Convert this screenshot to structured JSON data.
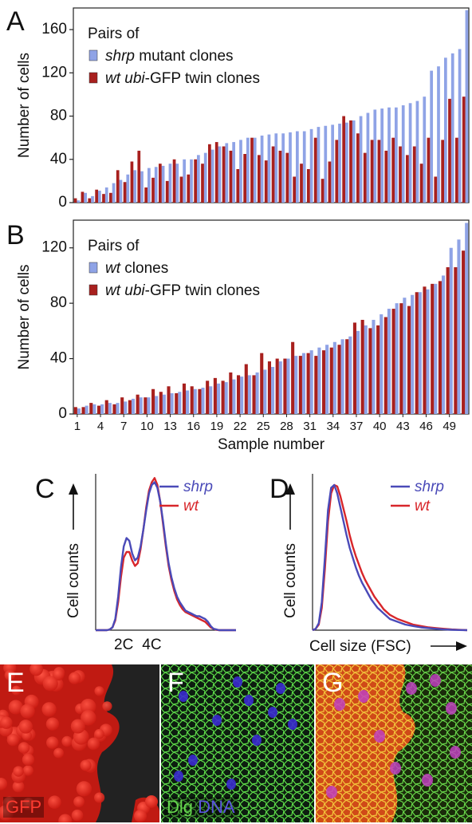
{
  "panels": {
    "a": {
      "letter": "A"
    },
    "b": {
      "letter": "B"
    },
    "c": {
      "letter": "C"
    },
    "d": {
      "letter": "D"
    },
    "e": {
      "letter": "E",
      "label": "GFP"
    },
    "f": {
      "letter": "F",
      "label_dlg": "Dlg",
      "label_dna": "DNA"
    },
    "g": {
      "letter": "G"
    }
  },
  "colors": {
    "blue": "#8fa3e6",
    "red": "#a8201e",
    "line_blue": "#4a4ab8",
    "line_red": "#d8262a"
  },
  "chart_data": [
    {
      "id": "A",
      "type": "bar",
      "ylabel": "Number of cells",
      "ylim": [
        0,
        180
      ],
      "yticks": [
        0,
        40,
        80,
        120,
        160
      ],
      "legend_title": "Pairs of",
      "legend_placement": "top-left",
      "series": [
        {
          "name_italic": "shrp",
          "name_rest": " mutant clones",
          "color": "#8fa3e6",
          "values": [
            2,
            9,
            6,
            11,
            14,
            18,
            21,
            26,
            30,
            29,
            32,
            33,
            34,
            36,
            36,
            40,
            40,
            44,
            46,
            49,
            52,
            55,
            56,
            58,
            60,
            60,
            62,
            63,
            64,
            64,
            65,
            66,
            66,
            68,
            70,
            71,
            72,
            73,
            74,
            76,
            80,
            83,
            86,
            87,
            88,
            88,
            90,
            92,
            94,
            98,
            122,
            126,
            134,
            138,
            142,
            178
          ]
        },
        {
          "name_italic": "wt ubi",
          "name_rest": "-GFP twin clones",
          "color": "#a8201e",
          "values": [
            4,
            10,
            4,
            12,
            8,
            9,
            30,
            19,
            38,
            48,
            14,
            23,
            36,
            20,
            40,
            24,
            26,
            40,
            36,
            54,
            56,
            52,
            48,
            31,
            45,
            60,
            44,
            39,
            52,
            48,
            46,
            24,
            36,
            31,
            60,
            22,
            38,
            58,
            80,
            76,
            64,
            46,
            58,
            58,
            48,
            60,
            52,
            44,
            52,
            36,
            60,
            24,
            58,
            96,
            60,
            98
          ]
        }
      ]
    },
    {
      "id": "B",
      "type": "bar",
      "xlabel": "Sample number",
      "ylabel": "Number of cells",
      "ylim": [
        0,
        140
      ],
      "yticks": [
        0,
        40,
        80,
        120
      ],
      "xticks": [
        "1",
        "4",
        "7",
        "10",
        "13",
        "16",
        "19",
        "22",
        "25",
        "28",
        "31",
        "34",
        "37",
        "40",
        "43",
        "46",
        "49"
      ],
      "legend_title": "Pairs of",
      "legend_placement": "top-left",
      "series": [
        {
          "name_italic": "wt",
          "name_rest": " clones",
          "color": "#8fa3e6",
          "values": [
            4,
            6,
            7,
            7,
            8,
            8,
            9,
            11,
            12,
            12,
            13,
            14,
            15,
            16,
            17,
            18,
            19,
            20,
            22,
            23,
            25,
            27,
            28,
            30,
            32,
            34,
            38,
            40,
            42,
            44,
            46,
            48,
            50,
            52,
            54,
            56,
            60,
            64,
            68,
            72,
            76,
            80,
            84,
            86,
            88,
            90,
            94,
            100,
            120,
            126,
            138
          ]
        },
        {
          "name_italic": "wt ubi",
          "name_rest": "-GFP twin clones",
          "color": "#a8201e",
          "values": [
            5,
            5,
            8,
            6,
            10,
            7,
            12,
            10,
            14,
            12,
            18,
            16,
            20,
            15,
            22,
            20,
            18,
            24,
            26,
            24,
            30,
            28,
            36,
            28,
            44,
            38,
            40,
            40,
            52,
            42,
            44,
            42,
            46,
            48,
            50,
            54,
            66,
            68,
            62,
            64,
            70,
            76,
            80,
            78,
            88,
            92,
            94,
            96,
            106,
            106,
            118
          ]
        }
      ]
    },
    {
      "id": "C",
      "type": "line",
      "ylabel": "Cell counts",
      "xticks": [
        "2C",
        "4C"
      ],
      "legend_placement": "top-right",
      "series": [
        {
          "name": "shrp",
          "color": "#4a4ab8",
          "x": [
            0,
            8,
            10,
            12,
            14,
            16,
            18,
            20,
            22,
            24,
            26,
            28,
            30,
            32,
            34,
            36,
            38,
            40,
            42,
            44,
            46,
            48,
            50,
            52,
            54,
            56,
            58,
            60,
            62,
            64,
            66,
            68,
            70,
            72,
            74,
            76,
            78,
            80,
            82,
            84,
            86,
            88,
            90,
            100
          ],
          "y": [
            0,
            0,
            0.5,
            2,
            8,
            24,
            45,
            60,
            66,
            64,
            55,
            50,
            52,
            60,
            72,
            86,
            98,
            104,
            106,
            102,
            92,
            78,
            62,
            48,
            38,
            30,
            24,
            20,
            17,
            14,
            13,
            12,
            11,
            10,
            10,
            9,
            8,
            6,
            3,
            1,
            0.5,
            0,
            0,
            0
          ]
        },
        {
          "name": "wt",
          "color": "#d8262a",
          "x": [
            0,
            8,
            10,
            12,
            14,
            16,
            18,
            20,
            22,
            24,
            26,
            28,
            30,
            32,
            34,
            36,
            38,
            40,
            42,
            44,
            46,
            48,
            50,
            52,
            54,
            56,
            58,
            60,
            62,
            64,
            66,
            68,
            70,
            72,
            74,
            76,
            78,
            80,
            82,
            84,
            86,
            88,
            90,
            100
          ],
          "y": [
            0,
            0,
            0.5,
            2,
            7,
            20,
            38,
            52,
            56,
            56,
            50,
            46,
            48,
            58,
            72,
            88,
            100,
            106,
            109,
            104,
            92,
            76,
            60,
            46,
            36,
            28,
            22,
            18,
            15,
            13,
            12,
            11,
            10,
            9,
            8,
            7,
            6,
            4,
            2,
            1,
            0.3,
            0,
            0,
            0
          ]
        }
      ]
    },
    {
      "id": "D",
      "type": "line",
      "ylabel": "Cell counts",
      "xlabel": "Cell size (FSC)",
      "legend_placement": "top-right",
      "series": [
        {
          "name": "shrp",
          "color": "#4a4ab8",
          "x": [
            0,
            2,
            4,
            6,
            8,
            10,
            12,
            14,
            16,
            18,
            20,
            22,
            24,
            26,
            28,
            30,
            32,
            34,
            36,
            38,
            40,
            42,
            44,
            46,
            48,
            50,
            55,
            60,
            65,
            70,
            75,
            80,
            85,
            90,
            95,
            100
          ],
          "y": [
            0,
            1,
            5,
            20,
            52,
            86,
            102,
            104,
            98,
            88,
            78,
            68,
            59,
            52,
            45,
            39,
            34,
            30,
            26,
            22,
            19,
            16,
            14,
            12,
            10,
            8,
            6,
            4,
            3,
            2,
            1.5,
            1,
            0.5,
            0.3,
            0.1,
            0
          ]
        },
        {
          "name": "wt",
          "color": "#d8262a",
          "x": [
            0,
            2,
            4,
            6,
            8,
            10,
            12,
            14,
            16,
            18,
            20,
            22,
            24,
            26,
            28,
            30,
            32,
            34,
            36,
            38,
            40,
            42,
            44,
            46,
            48,
            50,
            55,
            60,
            65,
            70,
            75,
            80,
            85,
            90,
            95,
            100
          ],
          "y": [
            0,
            1,
            4,
            16,
            44,
            78,
            98,
            104,
            103,
            96,
            87,
            78,
            68,
            60,
            53,
            47,
            41,
            36,
            32,
            28,
            24,
            21,
            18,
            15,
            13,
            11,
            8,
            6,
            4,
            3,
            2,
            1.5,
            1,
            0.5,
            0.2,
            0
          ]
        }
      ]
    }
  ]
}
